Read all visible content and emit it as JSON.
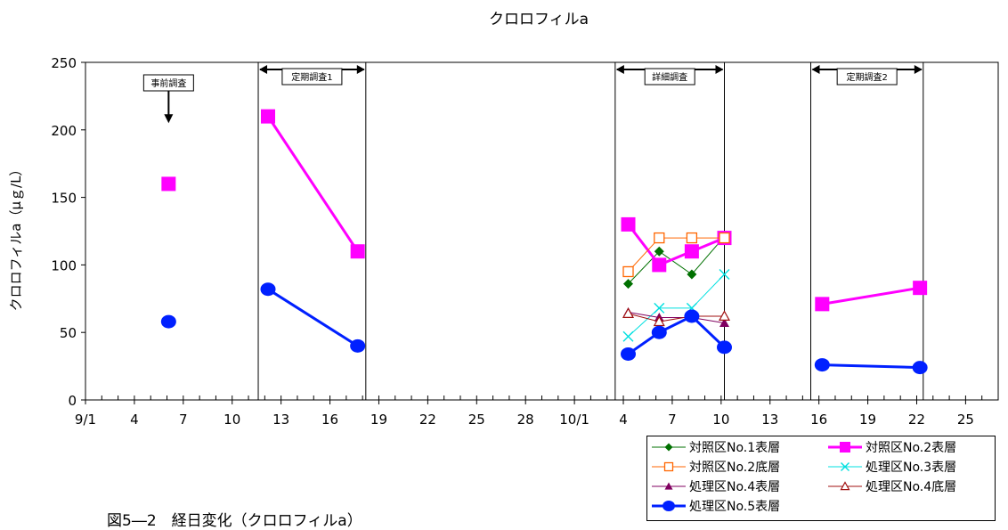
{
  "chart_data": {
    "type": "line",
    "title": "クロロフィルa",
    "xlabel": "",
    "ylabel": "クロロフィルa（μｇ/L）",
    "ylim": [
      0,
      250
    ],
    "yticks": [
      0,
      50,
      100,
      150,
      200,
      250
    ],
    "x_index_range": [
      0,
      56
    ],
    "x_ticks": [
      {
        "i": 0,
        "label": "9/1"
      },
      {
        "i": 3,
        "label": "4"
      },
      {
        "i": 6,
        "label": "7"
      },
      {
        "i": 9,
        "label": "10"
      },
      {
        "i": 12,
        "label": "13"
      },
      {
        "i": 15,
        "label": "16"
      },
      {
        "i": 18,
        "label": "19"
      },
      {
        "i": 21,
        "label": "22"
      },
      {
        "i": 24,
        "label": "25"
      },
      {
        "i": 27,
        "label": "28"
      },
      {
        "i": 30,
        "label": "10/1"
      },
      {
        "i": 33,
        "label": "4"
      },
      {
        "i": 36,
        "label": "7"
      },
      {
        "i": 39,
        "label": "10"
      },
      {
        "i": 42,
        "label": "13"
      },
      {
        "i": 45,
        "label": "16"
      },
      {
        "i": 48,
        "label": "19"
      },
      {
        "i": 51,
        "label": "22"
      },
      {
        "i": 54,
        "label": "25"
      }
    ],
    "periods": [
      {
        "label": "定期調査1",
        "start": 10.6,
        "end": 17.2
      },
      {
        "label": "詳細調査",
        "start": 32.5,
        "end": 39.2
      },
      {
        "label": "定期調査2",
        "start": 44.5,
        "end": 51.4
      }
    ],
    "annotations": [
      {
        "label": "事前調査",
        "x": 5.1,
        "arrow_to_y": 205
      }
    ],
    "series": [
      {
        "name": "対照区No.1表層",
        "color": "#007000",
        "marker": "diamond-filled",
        "width": 1,
        "segments": [
          [
            [
              33.3,
              86
            ],
            [
              35.2,
              110
            ],
            [
              37.2,
              93
            ],
            [
              39.2,
              121
            ]
          ]
        ]
      },
      {
        "name": "対照区No.2表層",
        "color": "#ff00ff",
        "marker": "square-filled",
        "width": 3,
        "segments": [
          [
            [
              5.1,
              160
            ]
          ],
          [
            [
              11.2,
              210
            ],
            [
              16.7,
              110
            ]
          ],
          [
            [
              33.3,
              130
            ],
            [
              35.2,
              100
            ],
            [
              37.2,
              110
            ],
            [
              39.2,
              120
            ]
          ],
          [
            [
              45.2,
              71
            ],
            [
              51.2,
              83
            ]
          ]
        ]
      },
      {
        "name": "対照区No.2底層",
        "color": "#ff6600",
        "marker": "square-open",
        "width": 1,
        "segments": [
          [
            [
              33.3,
              95
            ],
            [
              35.2,
              120
            ],
            [
              37.2,
              120
            ],
            [
              39.2,
              120
            ]
          ]
        ]
      },
      {
        "name": "処理区No.3表層",
        "color": "#00e0e0",
        "marker": "x",
        "width": 1,
        "segments": [
          [
            [
              33.3,
              47
            ],
            [
              35.2,
              68
            ],
            [
              37.2,
              68
            ],
            [
              39.2,
              93
            ]
          ]
        ]
      },
      {
        "name": "処理区No.4表層",
        "color": "#800060",
        "marker": "triangle-filled",
        "width": 1,
        "segments": [
          [
            [
              33.3,
              65
            ],
            [
              35.2,
              61
            ],
            [
              37.2,
              61
            ],
            [
              39.2,
              57
            ]
          ]
        ]
      },
      {
        "name": "処理区No.4底層",
        "color": "#a01010",
        "marker": "triangle-open",
        "width": 1,
        "segments": [
          [
            [
              33.3,
              64
            ],
            [
              35.2,
              58
            ],
            [
              37.2,
              62
            ],
            [
              39.2,
              62
            ]
          ]
        ]
      },
      {
        "name": "処理区No.5表層",
        "color": "#0020ff",
        "marker": "circle-filled",
        "width": 3,
        "segments": [
          [
            [
              5.1,
              58
            ]
          ],
          [
            [
              11.2,
              82
            ],
            [
              16.7,
              40
            ]
          ],
          [
            [
              33.3,
              34
            ],
            [
              35.2,
              50
            ],
            [
              37.2,
              62
            ],
            [
              39.2,
              39
            ]
          ],
          [
            [
              45.2,
              26
            ],
            [
              51.2,
              24
            ]
          ]
        ]
      }
    ],
    "legend_placement": "bottom-right",
    "grid": false
  },
  "caption": "図5―2　経日変化（クロロフィルa）"
}
